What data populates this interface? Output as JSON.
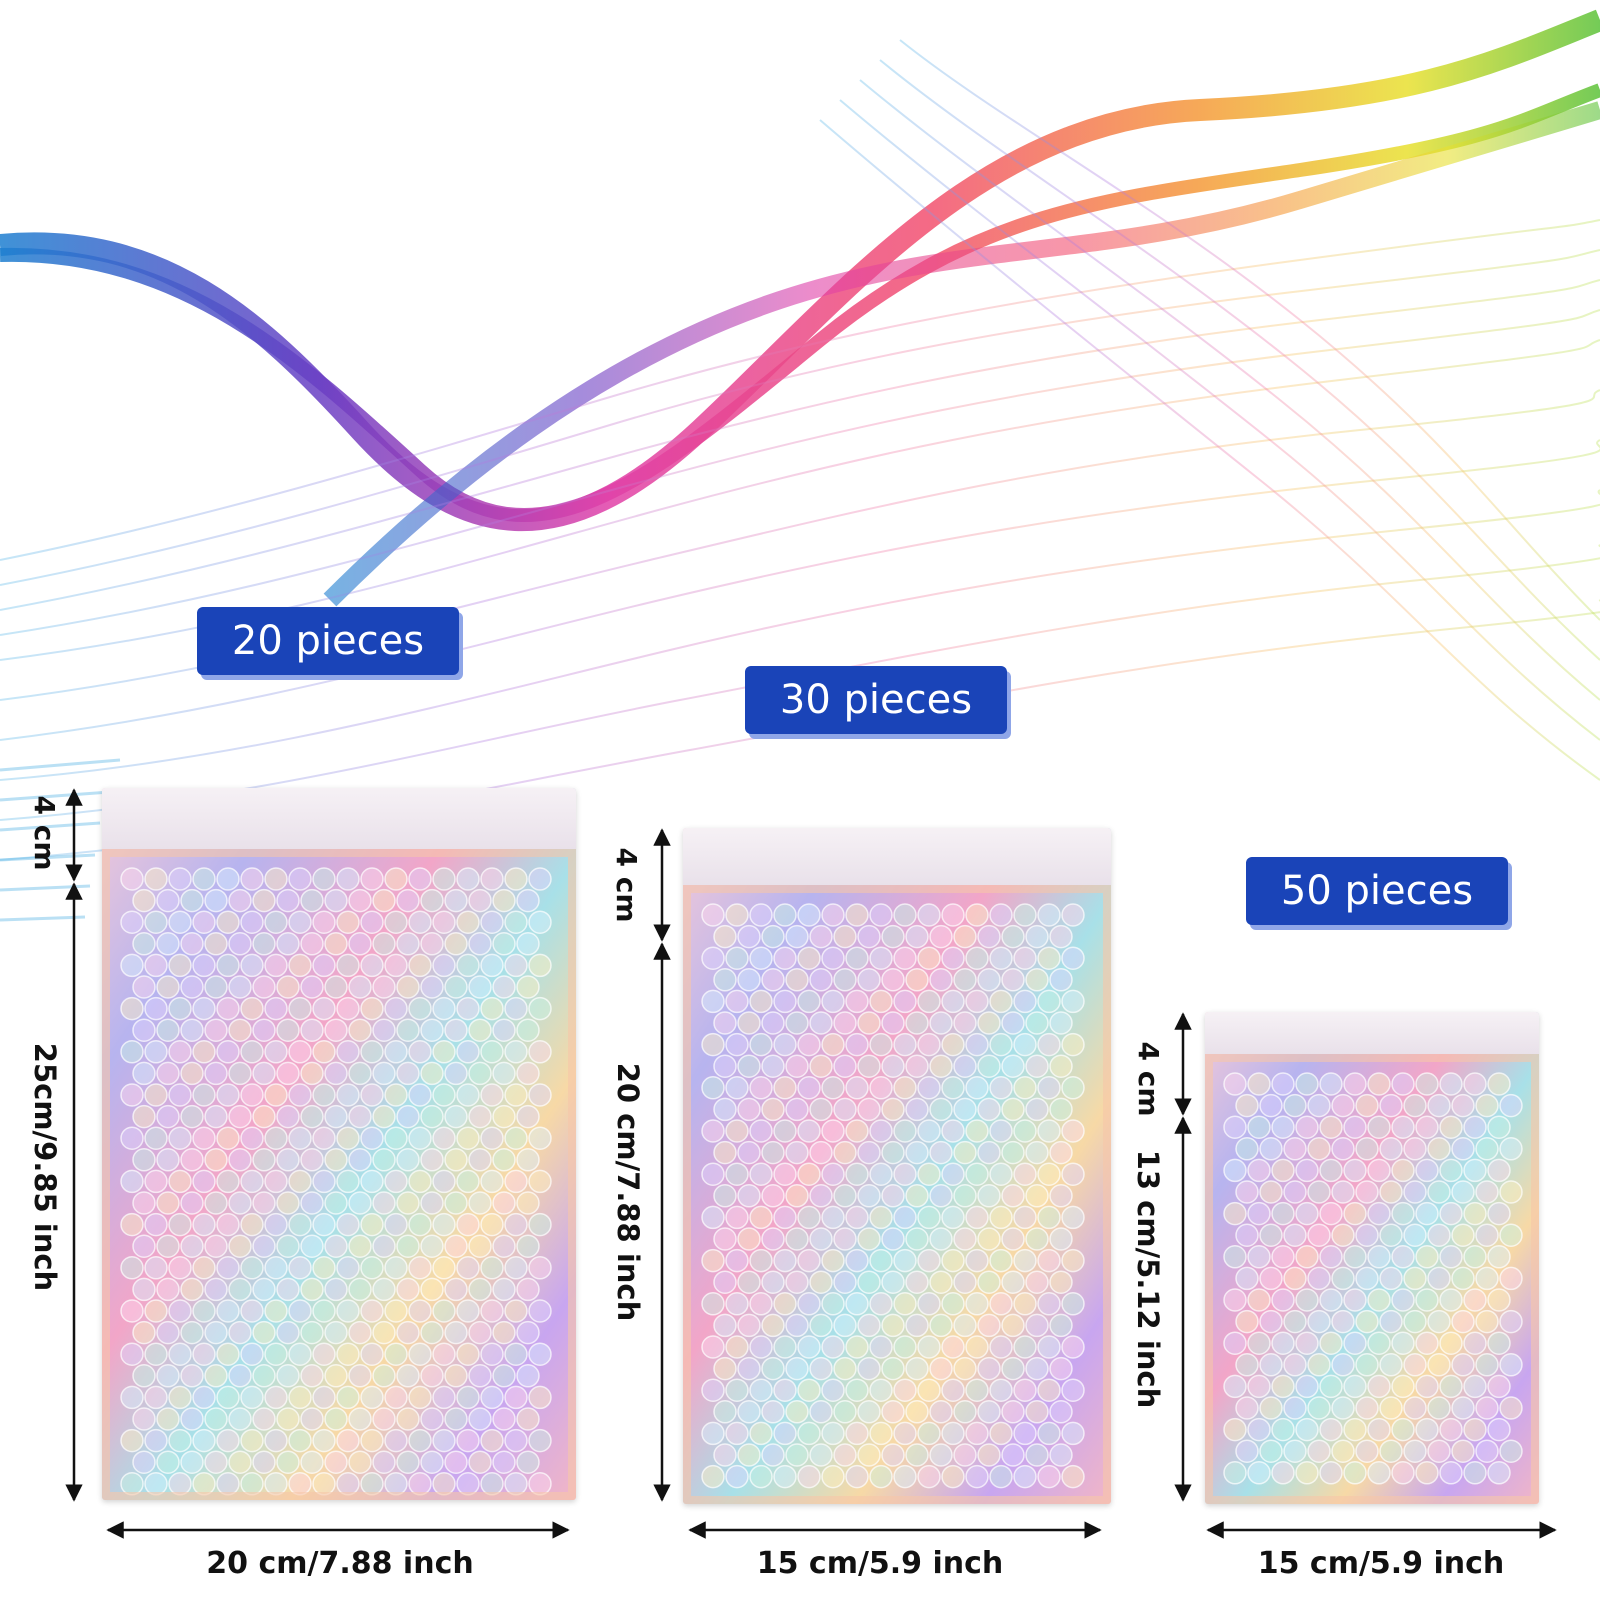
{
  "colors": {
    "badge": "#1a44b8",
    "badge_shadow": "#8fa6e8",
    "dimension_text": "#111111"
  },
  "products": [
    {
      "quantity_label": "20 pieces",
      "flap_height": "4 cm",
      "body_height": "25cm/9.85 inch",
      "width": "20 cm/7.88 inch"
    },
    {
      "quantity_label": "30 pieces",
      "flap_height": "4 cm",
      "body_height": "20 cm/7.88 inch",
      "width": "15 cm/5.9 inch"
    },
    {
      "quantity_label": "50 pieces",
      "flap_height": "4 cm",
      "body_height": "13 cm/5.12 inch",
      "width": "15 cm/5.9 inch"
    }
  ]
}
